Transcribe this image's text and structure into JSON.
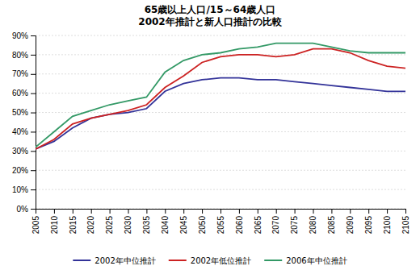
{
  "chart_data": {
    "type": "line",
    "title": "65歳以上人口/15～64歳人口\n2002年推計と新人口推計の比較",
    "x": [
      2005,
      2010,
      2015,
      2020,
      2025,
      2030,
      2035,
      2040,
      2045,
      2050,
      2055,
      2060,
      2065,
      2070,
      2075,
      2080,
      2085,
      2090,
      2095,
      2100,
      2105
    ],
    "xlim": [
      2005,
      2105
    ],
    "xticks": [
      2005,
      2010,
      2015,
      2020,
      2025,
      2030,
      2035,
      2040,
      2045,
      2050,
      2055,
      2060,
      2065,
      2070,
      2075,
      2080,
      2085,
      2090,
      2095,
      2100,
      2105
    ],
    "ylim": [
      0,
      90
    ],
    "yticks": [
      {
        "value": 0,
        "label": "0%"
      },
      {
        "value": 10,
        "label": "10%"
      },
      {
        "value": 20,
        "label": "20%"
      },
      {
        "value": 30,
        "label": "30%"
      },
      {
        "value": 40,
        "label": "40%"
      },
      {
        "value": 50,
        "label": "50%"
      },
      {
        "value": 60,
        "label": "60%"
      },
      {
        "value": 70,
        "label": "70%"
      },
      {
        "value": 80,
        "label": "80%"
      },
      {
        "value": 90,
        "label": "90%"
      }
    ],
    "grid": true,
    "legend": "bottom",
    "series": [
      {
        "name": "2002年中位推計",
        "color": "#333399",
        "values": [
          31,
          35,
          42,
          47,
          49,
          50,
          52,
          61,
          65,
          67,
          68,
          68,
          67,
          67,
          66,
          65,
          64,
          63,
          62,
          61,
          61
        ]
      },
      {
        "name": "2002年低位推計",
        "color": "#CC2222",
        "values": [
          31,
          36,
          44,
          47,
          49,
          51,
          54,
          63,
          69,
          76,
          79,
          80,
          80,
          79,
          80,
          83,
          83,
          81,
          77,
          74,
          73
        ]
      },
      {
        "name": "2006年中位推計",
        "color": "#339966",
        "values": [
          32,
          40,
          48,
          51,
          54,
          56,
          58,
          71,
          77,
          80,
          81,
          83,
          84,
          86,
          86,
          86,
          84,
          82,
          81,
          81,
          81
        ]
      }
    ]
  }
}
